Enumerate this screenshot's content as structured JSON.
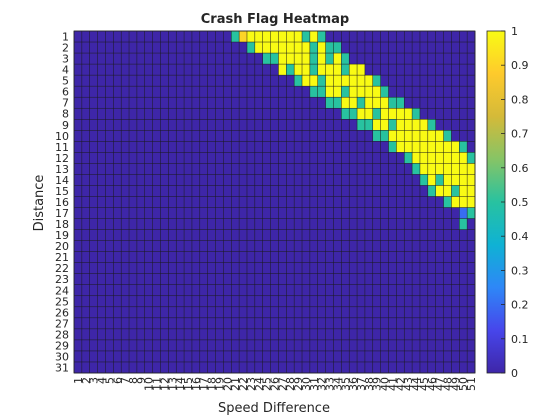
{
  "chart_data": {
    "type": "heatmap",
    "title": "Crash Flag Heatmap",
    "xlabel": "Speed Difference",
    "ylabel": "Distance",
    "x_categories": [
      "1",
      "2",
      "3",
      "4",
      "5",
      "6",
      "7",
      "8",
      "9",
      "10",
      "11",
      "12",
      "13",
      "14",
      "15",
      "16",
      "17",
      "18",
      "19",
      "20",
      "21",
      "22",
      "23",
      "24",
      "25",
      "26",
      "27",
      "28",
      "29",
      "30",
      "31",
      "32",
      "33",
      "34",
      "35",
      "36",
      "37",
      "38",
      "39",
      "40",
      "41",
      "42",
      "43",
      "44",
      "45",
      "46",
      "47",
      "48",
      "49",
      "50",
      "51"
    ],
    "y_categories": [
      "1",
      "2",
      "3",
      "4",
      "5",
      "6",
      "7",
      "8",
      "9",
      "10",
      "11",
      "12",
      "13",
      "14",
      "15",
      "16",
      "17",
      "18",
      "19",
      "20",
      "21",
      "22",
      "23",
      "24",
      "25",
      "26",
      "27",
      "28",
      "29",
      "30",
      "31"
    ],
    "clim": [
      0,
      1
    ],
    "colorbar_ticks": [
      "0",
      "0.1",
      "0.2",
      "0.3",
      "0.4",
      "0.5",
      "0.6",
      "0.7",
      "0.8",
      "0.9",
      "1"
    ],
    "colormap": [
      "#3e26a8",
      "#4746eb",
      "#2e87f7",
      "#0fb2d4",
      "#28c2a0",
      "#86c466",
      "#d4ba39",
      "#feca2c",
      "#f9fb14"
    ],
    "rows": [
      [
        {
          "from": 21,
          "to": 21,
          "v": 0.5
        },
        {
          "from": 22,
          "to": 22,
          "v": 0.9
        },
        {
          "from": 23,
          "to": 29,
          "v": 1
        },
        {
          "from": 30,
          "to": 30,
          "v": 0.5
        },
        {
          "from": 31,
          "to": 31,
          "v": 1
        },
        {
          "from": 32,
          "to": 32,
          "v": 0.5
        }
      ],
      [
        {
          "from": 23,
          "to": 23,
          "v": 0.5
        },
        {
          "from": 24,
          "to": 30,
          "v": 1
        },
        {
          "from": 31,
          "to": 31,
          "v": 0.5
        },
        {
          "from": 32,
          "to": 32,
          "v": 1
        },
        {
          "from": 33,
          "to": 34,
          "v": 0.5
        }
      ],
      [
        {
          "from": 25,
          "to": 26,
          "v": 0.5
        },
        {
          "from": 27,
          "to": 30,
          "v": 1
        },
        {
          "from": 31,
          "to": 31,
          "v": 0.5
        },
        {
          "from": 32,
          "to": 32,
          "v": 1
        },
        {
          "from": 33,
          "to": 33,
          "v": 0.5
        },
        {
          "from": 34,
          "to": 34,
          "v": 1
        },
        {
          "from": 35,
          "to": 35,
          "v": 0.5
        }
      ],
      [
        {
          "from": 27,
          "to": 27,
          "v": 1
        },
        {
          "from": 28,
          "to": 28,
          "v": 0.5
        },
        {
          "from": 29,
          "to": 30,
          "v": 1
        },
        {
          "from": 31,
          "to": 31,
          "v": 0.5
        },
        {
          "from": 32,
          "to": 34,
          "v": 1
        },
        {
          "from": 35,
          "to": 35,
          "v": 0.5
        },
        {
          "from": 36,
          "to": 37,
          "v": 1
        }
      ],
      [
        {
          "from": 29,
          "to": 29,
          "v": 0.5
        },
        {
          "from": 30,
          "to": 31,
          "v": 1
        },
        {
          "from": 32,
          "to": 32,
          "v": 0.5
        },
        {
          "from": 33,
          "to": 38,
          "v": 1
        },
        {
          "from": 39,
          "to": 39,
          "v": 0.5
        }
      ],
      [
        {
          "from": 31,
          "to": 32,
          "v": 0.5
        },
        {
          "from": 33,
          "to": 34,
          "v": 1
        },
        {
          "from": 35,
          "to": 35,
          "v": 0.5
        },
        {
          "from": 36,
          "to": 39,
          "v": 1
        },
        {
          "from": 40,
          "to": 40,
          "v": 0.5
        }
      ],
      [
        {
          "from": 33,
          "to": 34,
          "v": 0.5
        },
        {
          "from": 35,
          "to": 36,
          "v": 1
        },
        {
          "from": 37,
          "to": 37,
          "v": 0.5
        },
        {
          "from": 38,
          "to": 40,
          "v": 1
        },
        {
          "from": 41,
          "to": 42,
          "v": 0.5
        }
      ],
      [
        {
          "from": 35,
          "to": 36,
          "v": 0.5
        },
        {
          "from": 37,
          "to": 38,
          "v": 1
        },
        {
          "from": 39,
          "to": 39,
          "v": 0.5
        },
        {
          "from": 40,
          "to": 43,
          "v": 1
        },
        {
          "from": 44,
          "to": 44,
          "v": 0.5
        }
      ],
      [
        {
          "from": 37,
          "to": 38,
          "v": 0.5
        },
        {
          "from": 39,
          "to": 40,
          "v": 1
        },
        {
          "from": 41,
          "to": 41,
          "v": 0.5
        },
        {
          "from": 42,
          "to": 45,
          "v": 1
        },
        {
          "from": 46,
          "to": 46,
          "v": 0.5
        }
      ],
      [
        {
          "from": 39,
          "to": 40,
          "v": 0.5
        },
        {
          "from": 41,
          "to": 47,
          "v": 1
        },
        {
          "from": 48,
          "to": 48,
          "v": 0.5
        }
      ],
      [
        {
          "from": 41,
          "to": 41,
          "v": 0.5
        },
        {
          "from": 42,
          "to": 49,
          "v": 1
        },
        {
          "from": 50,
          "to": 50,
          "v": 0.5
        }
      ],
      [
        {
          "from": 43,
          "to": 43,
          "v": 0.5
        },
        {
          "from": 44,
          "to": 50,
          "v": 1
        },
        {
          "from": 51,
          "to": 51,
          "v": 0.5
        }
      ],
      [
        {
          "from": 44,
          "to": 44,
          "v": 0.5
        },
        {
          "from": 45,
          "to": 51,
          "v": 1
        }
      ],
      [
        {
          "from": 45,
          "to": 45,
          "v": 0.5
        },
        {
          "from": 46,
          "to": 46,
          "v": 1
        },
        {
          "from": 47,
          "to": 47,
          "v": 0.5
        },
        {
          "from": 48,
          "to": 51,
          "v": 1
        }
      ],
      [
        {
          "from": 46,
          "to": 46,
          "v": 0.5
        },
        {
          "from": 47,
          "to": 48,
          "v": 1
        },
        {
          "from": 49,
          "to": 49,
          "v": 0.5
        },
        {
          "from": 50,
          "to": 51,
          "v": 1
        }
      ],
      [
        {
          "from": 48,
          "to": 48,
          "v": 0.5
        },
        {
          "from": 49,
          "to": 51,
          "v": 1
        }
      ],
      [
        {
          "from": 50,
          "to": 50,
          "v": 0.2
        },
        {
          "from": 51,
          "to": 51,
          "v": 0.5
        }
      ],
      [
        {
          "from": 50,
          "to": 50,
          "v": 0.5
        }
      ],
      [],
      [],
      [],
      [],
      [],
      [],
      [],
      [],
      [],
      [],
      [],
      [],
      []
    ]
  }
}
